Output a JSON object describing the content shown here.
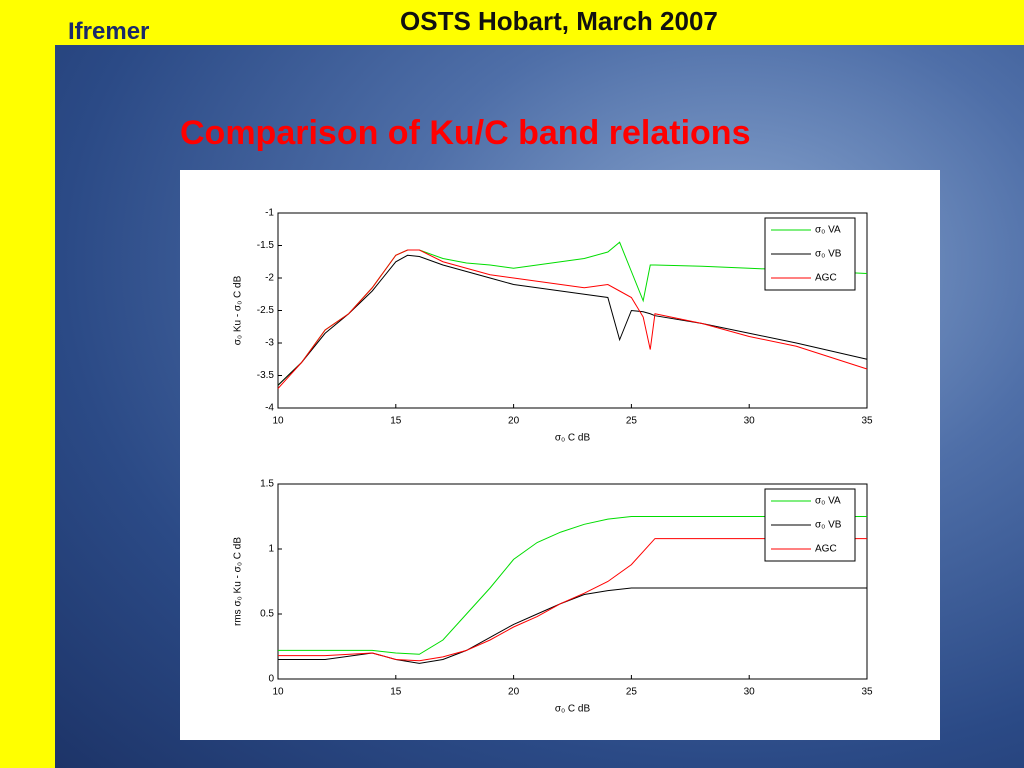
{
  "header": {
    "logo": "Ifremer",
    "title": "OSTS Hobart, March 2007"
  },
  "slide_title": "Comparison of Ku/C band relations",
  "chart_data": [
    {
      "type": "line",
      "ylabel": "σ₀ Ku - σ₀ C dB",
      "xlabel": "σ₀ C dB",
      "x": [
        10,
        11,
        12,
        13,
        14,
        15,
        15.5,
        16,
        17,
        18,
        19,
        20,
        21,
        22,
        23,
        24,
        24.5,
        25,
        25.5,
        25.8,
        26,
        28,
        30,
        32,
        35
      ],
      "xlim": [
        10,
        35
      ],
      "xticks": [
        10,
        15,
        20,
        25,
        30,
        35
      ],
      "ylim": [
        -4,
        -1
      ],
      "yticks": [
        -1,
        -1.5,
        -2,
        -2.5,
        -3,
        -3.5,
        -4
      ],
      "legend": "upper right",
      "series": [
        {
          "name": "σ₀ VA",
          "color": "#00dd00",
          "values": [
            -3.65,
            -3.3,
            -2.8,
            -2.55,
            -2.15,
            -1.65,
            -1.57,
            -1.57,
            -1.7,
            -1.77,
            -1.8,
            -1.85,
            -1.8,
            -1.75,
            -1.7,
            -1.6,
            -1.45,
            -1.9,
            -2.35,
            -1.8,
            -1.8,
            -1.82,
            -1.85,
            -1.88,
            -1.93
          ]
        },
        {
          "name": "σ₀ VB",
          "color": "#000000",
          "values": [
            -3.65,
            -3.3,
            -2.85,
            -2.55,
            -2.2,
            -1.75,
            -1.65,
            -1.67,
            -1.8,
            -1.9,
            -2,
            -2.1,
            -2.15,
            -2.2,
            -2.25,
            -2.3,
            -2.95,
            -2.5,
            -2.52,
            -2.55,
            -2.58,
            -2.7,
            -2.85,
            -3,
            -3.25
          ]
        },
        {
          "name": "AGC",
          "color": "#ff0000",
          "values": [
            -3.7,
            -3.3,
            -2.8,
            -2.55,
            -2.15,
            -1.65,
            -1.57,
            -1.57,
            -1.75,
            -1.85,
            -1.95,
            -2,
            -2.05,
            -2.1,
            -2.15,
            -2.1,
            -2.2,
            -2.3,
            -2.6,
            -3.1,
            -2.55,
            -2.7,
            -2.9,
            -3.05,
            -3.4
          ]
        }
      ]
    },
    {
      "type": "line",
      "ylabel": "rms σ₀ Ku - σ₀ C dB",
      "xlabel": "σ₀ C dB",
      "x": [
        10,
        12,
        14,
        15,
        16,
        17,
        18,
        19,
        20,
        21,
        22,
        23,
        24,
        25,
        26,
        28,
        30,
        35
      ],
      "xlim": [
        10,
        35
      ],
      "xticks": [
        10,
        15,
        20,
        25,
        30,
        35
      ],
      "ylim": [
        0,
        1.5
      ],
      "yticks": [
        0,
        0.5,
        1,
        1.5
      ],
      "legend": "upper right",
      "series": [
        {
          "name": "σ₀ VA",
          "color": "#00dd00",
          "values": [
            0.22,
            0.22,
            0.22,
            0.2,
            0.19,
            0.3,
            0.5,
            0.7,
            0.92,
            1.05,
            1.13,
            1.19,
            1.23,
            1.25,
            1.25,
            1.25,
            1.25,
            1.25
          ]
        },
        {
          "name": "σ₀ VB",
          "color": "#000000",
          "values": [
            0.15,
            0.15,
            0.2,
            0.15,
            0.12,
            0.15,
            0.22,
            0.32,
            0.42,
            0.5,
            0.58,
            0.65,
            0.68,
            0.7,
            0.7,
            0.7,
            0.7,
            0.7
          ]
        },
        {
          "name": "AGC",
          "color": "#ff0000",
          "values": [
            0.18,
            0.18,
            0.2,
            0.15,
            0.14,
            0.17,
            0.22,
            0.3,
            0.4,
            0.48,
            0.58,
            0.66,
            0.75,
            0.88,
            1.08,
            1.08,
            1.08,
            1.08
          ]
        }
      ]
    }
  ]
}
